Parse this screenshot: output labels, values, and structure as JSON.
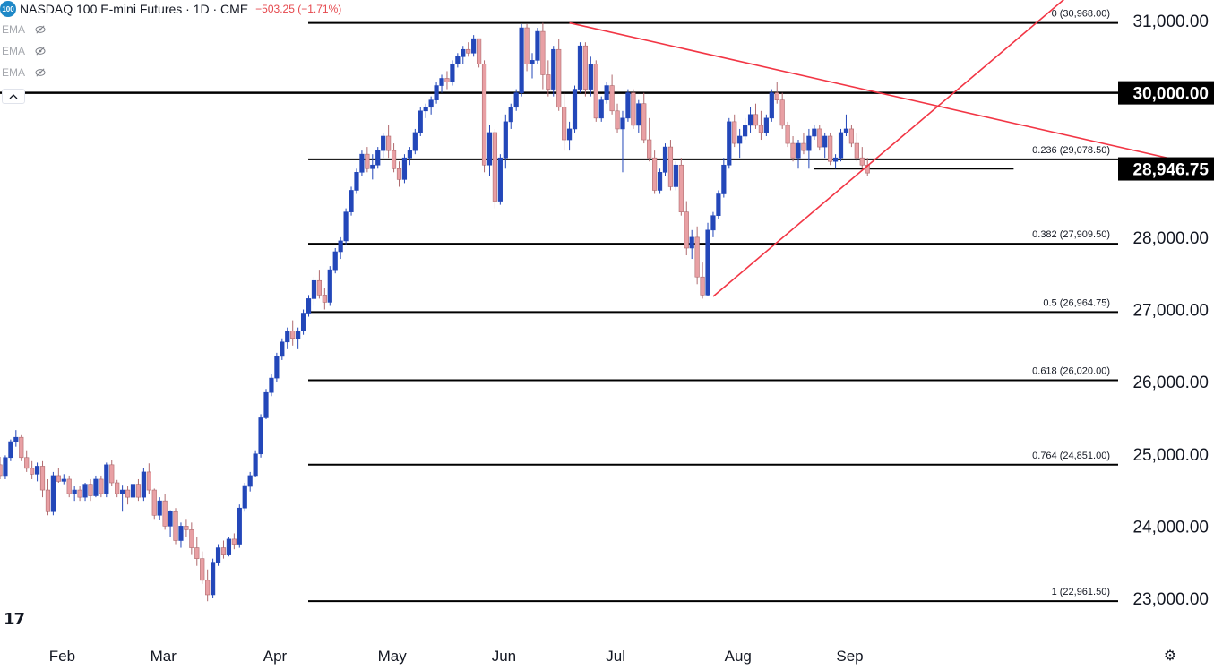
{
  "header": {
    "badge": "100",
    "title": "NASDAQ 100 E-mini Futures · 1D · CME",
    "change": "−503.25 (−1.71%)",
    "indicators": [
      "EMA",
      "EMA",
      "EMA"
    ]
  },
  "colors": {
    "up": "#2347b9",
    "down": "#e8a0a4",
    "wick_up": "#2347b9",
    "wick_down": "#b06a6e",
    "trendline": "#f23645",
    "level": "#000000",
    "label_bg": "#000000"
  },
  "icons": [
    "collapse-icon",
    "tradingview-logo",
    "settings-icon",
    "eye-slash-icon"
  ],
  "chart_data": {
    "type": "candlestick",
    "title": "NASDAQ 100 E-mini Futures · 1D · CME",
    "ylim": [
      22700,
      31200
    ],
    "y_ticks": [
      {
        "value": 23000,
        "label": "23,000.00"
      },
      {
        "value": 24000,
        "label": "24,000.00"
      },
      {
        "value": 25000,
        "label": "25,000.00"
      },
      {
        "value": 26000,
        "label": "26,000.00"
      },
      {
        "value": 27000,
        "label": "27,000.00"
      },
      {
        "value": 28000,
        "label": "28,000.00"
      },
      {
        "value": 31000,
        "label": "31,000.00"
      }
    ],
    "y_highlight_labels": [
      {
        "value": 30000,
        "label": "30,000.00"
      },
      {
        "value": 28946.75,
        "label": "28,946.75"
      }
    ],
    "x_labels": [
      {
        "label": "Feb",
        "bar": 10
      },
      {
        "label": "Mar",
        "bar": 29
      },
      {
        "label": "Apr",
        "bar": 50
      },
      {
        "label": "May",
        "bar": 72
      },
      {
        "label": "Jun",
        "bar": 93
      },
      {
        "label": "Jul",
        "bar": 114
      },
      {
        "label": "Aug",
        "bar": 137
      },
      {
        "label": "Sep",
        "bar": 158
      }
    ],
    "fib_levels": [
      {
        "ratio": "0",
        "value": 30968.0,
        "label": "0 (30,968.00)"
      },
      {
        "ratio": "0.236",
        "value": 29078.5,
        "label": "0.236 (29,078.50)"
      },
      {
        "ratio": "0.382",
        "value": 27909.5,
        "label": "0.382 (27,909.50)"
      },
      {
        "ratio": "0.5",
        "value": 26964.75,
        "label": "0.5 (26,964.75)"
      },
      {
        "ratio": "0.618",
        "value": 26020.0,
        "label": "0.618 (26,020.00)"
      },
      {
        "ratio": "0.764",
        "value": 24851.0,
        "label": "0.764 (24,851.00)"
      },
      {
        "ratio": "1",
        "value": 22961.5,
        "label": "1 (22,961.50)"
      }
    ],
    "horizontal_levels": [
      30000,
      28946.75
    ],
    "support_zone": {
      "value": 28946.75,
      "from_bar": 153,
      "to_bar": 177
    },
    "trendlines": [
      {
        "name": "resistance",
        "from": {
          "bar": 107,
          "value": 30968
        },
        "to": {
          "bar": 176,
          "value": 29820
        }
      },
      {
        "name": "support",
        "from": {
          "bar": 134,
          "value": 27180
        },
        "to": {
          "bar": 176,
          "value": 29800
        }
      }
    ],
    "candles": [
      [
        24850,
        24960,
        24650,
        24700
      ],
      [
        24700,
        24980,
        24650,
        24950
      ],
      [
        24950,
        25200,
        24900,
        25170
      ],
      [
        25170,
        25330,
        25100,
        25230
      ],
      [
        25230,
        25260,
        24900,
        24950
      ],
      [
        24950,
        25050,
        24750,
        24800
      ],
      [
        24800,
        24900,
        24650,
        24720
      ],
      [
        24720,
        24880,
        24620,
        24830
      ],
      [
        24830,
        24900,
        24400,
        24500
      ],
      [
        24500,
        24650,
        24150,
        24200
      ],
      [
        24200,
        24750,
        24150,
        24700
      ],
      [
        24700,
        24800,
        24600,
        24620
      ],
      [
        24620,
        24720,
        24580,
        24650
      ],
      [
        24650,
        24700,
        24400,
        24450
      ],
      [
        24450,
        24550,
        24350,
        24500
      ],
      [
        24500,
        24550,
        24350,
        24400
      ],
      [
        24400,
        24600,
        24350,
        24580
      ],
      [
        24580,
        24650,
        24350,
        24420
      ],
      [
        24420,
        24700,
        24400,
        24650
      ],
      [
        24650,
        24700,
        24400,
        24450
      ],
      [
        24450,
        24880,
        24400,
        24850
      ],
      [
        24850,
        24920,
        24550,
        24600
      ],
      [
        24600,
        24640,
        24400,
        24450
      ],
      [
        24450,
        24560,
        24200,
        24500
      ],
      [
        24500,
        24550,
        24300,
        24400
      ],
      [
        24400,
        24620,
        24350,
        24580
      ],
      [
        24580,
        24650,
        24350,
        24400
      ],
      [
        24400,
        24800,
        24350,
        24750
      ],
      [
        24750,
        24870,
        24450,
        24500
      ],
      [
        24500,
        24520,
        24100,
        24150
      ],
      [
        24150,
        24400,
        24080,
        24350
      ],
      [
        24350,
        24450,
        23950,
        24000
      ],
      [
        24000,
        24220,
        23850,
        24200
      ],
      [
        24200,
        24250,
        23750,
        23800
      ],
      [
        23800,
        24050,
        23700,
        24000
      ],
      [
        24000,
        24100,
        23850,
        23950
      ],
      [
        23950,
        24050,
        23600,
        23700
      ],
      [
        23700,
        23850,
        23450,
        23550
      ],
      [
        23550,
        23650,
        23200,
        23250
      ],
      [
        23250,
        23400,
        22960,
        23050
      ],
      [
        23050,
        23550,
        23000,
        23500
      ],
      [
        23500,
        23750,
        23450,
        23700
      ],
      [
        23700,
        23800,
        23550,
        23600
      ],
      [
        23600,
        23850,
        23580,
        23820
      ],
      [
        23820,
        23900,
        23680,
        23750
      ],
      [
        23750,
        24300,
        23700,
        24250
      ],
      [
        24250,
        24600,
        24200,
        24550
      ],
      [
        24550,
        24750,
        24480,
        24700
      ],
      [
        24700,
        25050,
        24680,
        25000
      ],
      [
        25000,
        25550,
        24950,
        25500
      ],
      [
        25500,
        25900,
        25480,
        25850
      ],
      [
        25850,
        26100,
        25800,
        26050
      ],
      [
        26050,
        26400,
        26000,
        26350
      ],
      [
        26350,
        26600,
        26300,
        26550
      ],
      [
        26550,
        26750,
        26450,
        26700
      ],
      [
        26700,
        26850,
        26500,
        26600
      ],
      [
        26600,
        26750,
        26450,
        26700
      ],
      [
        26700,
        27000,
        26650,
        26950
      ],
      [
        26950,
        27200,
        26900,
        27150
      ],
      [
        27150,
        27450,
        27050,
        27400
      ],
      [
        27400,
        27550,
        27150,
        27200
      ],
      [
        27200,
        27300,
        27000,
        27100
      ],
      [
        27100,
        27600,
        27050,
        27550
      ],
      [
        27550,
        27850,
        27500,
        27800
      ],
      [
        27800,
        28000,
        27700,
        27950
      ],
      [
        27950,
        28400,
        27900,
        28350
      ],
      [
        28350,
        28700,
        28300,
        28650
      ],
      [
        28650,
        28950,
        28600,
        28900
      ],
      [
        28900,
        29200,
        28850,
        29150
      ],
      [
        29150,
        29250,
        28900,
        28950
      ],
      [
        28950,
        29150,
        28800,
        29000
      ],
      [
        29000,
        29250,
        28950,
        29200
      ],
      [
        29200,
        29450,
        29100,
        29400
      ],
      [
        29400,
        29550,
        29100,
        29200
      ],
      [
        29200,
        29300,
        28900,
        28950
      ],
      [
        28950,
        29050,
        28700,
        28800
      ],
      [
        28800,
        29150,
        28750,
        29100
      ],
      [
        29100,
        29250,
        29000,
        29200
      ],
      [
        29200,
        29500,
        29150,
        29450
      ],
      [
        29450,
        29800,
        29400,
        29750
      ],
      [
        29750,
        29850,
        29650,
        29800
      ],
      [
        29800,
        29950,
        29700,
        29900
      ],
      [
        29900,
        30150,
        29850,
        30100
      ],
      [
        30100,
        30250,
        30000,
        30200
      ],
      [
        30200,
        30300,
        30050,
        30150
      ],
      [
        30150,
        30450,
        30100,
        30400
      ],
      [
        30400,
        30550,
        30350,
        30500
      ],
      [
        30500,
        30650,
        30400,
        30600
      ],
      [
        30600,
        30700,
        30500,
        30550
      ],
      [
        30550,
        30800,
        30500,
        30750
      ],
      [
        30750,
        30750,
        30350,
        30400
      ],
      [
        30400,
        30450,
        28900,
        29000
      ],
      [
        29000,
        29550,
        28850,
        29450
      ],
      [
        29450,
        29500,
        28400,
        28500
      ],
      [
        28500,
        29150,
        28450,
        29100
      ],
      [
        29100,
        29700,
        28950,
        29600
      ],
      [
        29600,
        29850,
        29500,
        29800
      ],
      [
        29800,
        30050,
        29750,
        30000
      ],
      [
        30000,
        30950,
        29950,
        30900
      ],
      [
        30900,
        30950,
        30300,
        30400
      ],
      [
        30400,
        30550,
        30200,
        30450
      ],
      [
        30450,
        30900,
        30400,
        30850
      ],
      [
        30850,
        30968,
        30050,
        30250
      ],
      [
        30250,
        30450,
        29950,
        30050
      ],
      [
        30050,
        30650,
        29950,
        30600
      ],
      [
        30600,
        30750,
        29750,
        29800
      ],
      [
        29800,
        30000,
        29200,
        29350
      ],
      [
        29350,
        29600,
        29200,
        29500
      ],
      [
        29500,
        30100,
        29450,
        30050
      ],
      [
        30050,
        30700,
        30000,
        30650
      ],
      [
        30650,
        30700,
        29950,
        30050
      ],
      [
        30050,
        30500,
        29950,
        30400
      ],
      [
        30400,
        30450,
        29600,
        29650
      ],
      [
        29650,
        29950,
        29600,
        29900
      ],
      [
        29900,
        30150,
        29850,
        30100
      ],
      [
        30100,
        30250,
        29700,
        29750
      ],
      [
        29750,
        29850,
        29450,
        29500
      ],
      [
        29500,
        29750,
        28900,
        29650
      ],
      [
        29650,
        30050,
        29600,
        30000
      ],
      [
        30000,
        30050,
        29500,
        29550
      ],
      [
        29550,
        29900,
        29450,
        29850
      ],
      [
        29850,
        30000,
        29300,
        29350
      ],
      [
        29350,
        29650,
        29050,
        29100
      ],
      [
        29100,
        29200,
        28600,
        28650
      ],
      [
        28650,
        28950,
        28600,
        28900
      ],
      [
        28900,
        29300,
        28850,
        29250
      ],
      [
        29250,
        29350,
        28650,
        28700
      ],
      [
        28700,
        29050,
        28650,
        29000
      ],
      [
        29000,
        29100,
        28300,
        28350
      ],
      [
        28350,
        28500,
        27750,
        27850
      ],
      [
        27850,
        28100,
        27700,
        28000
      ],
      [
        28000,
        28150,
        27350,
        27450
      ],
      [
        27450,
        27650,
        27150,
        27200
      ],
      [
        27200,
        28200,
        27180,
        28100
      ],
      [
        28100,
        28350,
        28000,
        28300
      ],
      [
        28300,
        28650,
        28250,
        28600
      ],
      [
        28600,
        29100,
        28550,
        29000
      ],
      [
        29000,
        29650,
        28950,
        29600
      ],
      [
        29600,
        29700,
        29250,
        29300
      ],
      [
        29300,
        29500,
        29100,
        29400
      ],
      [
        29400,
        29650,
        29350,
        29550
      ],
      [
        29550,
        29800,
        29450,
        29700
      ],
      [
        29700,
        29850,
        29500,
        29550
      ],
      [
        29550,
        29750,
        29350,
        29450
      ],
      [
        29450,
        29700,
        29400,
        29650
      ],
      [
        29650,
        30050,
        29600,
        30000
      ],
      [
        30000,
        30150,
        29850,
        29900
      ],
      [
        29900,
        30000,
        29500,
        29550
      ],
      [
        29550,
        29600,
        29250,
        29300
      ],
      [
        29300,
        29400,
        29050,
        29100
      ],
      [
        29100,
        29350,
        28950,
        29300
      ],
      [
        29300,
        29450,
        29150,
        29200
      ],
      [
        29200,
        29500,
        28950,
        29400
      ],
      [
        29400,
        29550,
        29350,
        29500
      ],
      [
        29500,
        29550,
        29200,
        29250
      ],
      [
        29250,
        29450,
        29100,
        29400
      ],
      [
        29400,
        29450,
        29000,
        29050
      ],
      [
        29050,
        29150,
        28950,
        29100
      ],
      [
        29100,
        29500,
        29050,
        29450
      ],
      [
        29450,
        29700,
        29400,
        29500
      ],
      [
        29500,
        29550,
        29250,
        29300
      ],
      [
        29300,
        29450,
        29050,
        29100
      ],
      [
        29100,
        29250,
        28950,
        29000
      ],
      [
        29000,
        29100,
        28850,
        28890
      ]
    ]
  }
}
